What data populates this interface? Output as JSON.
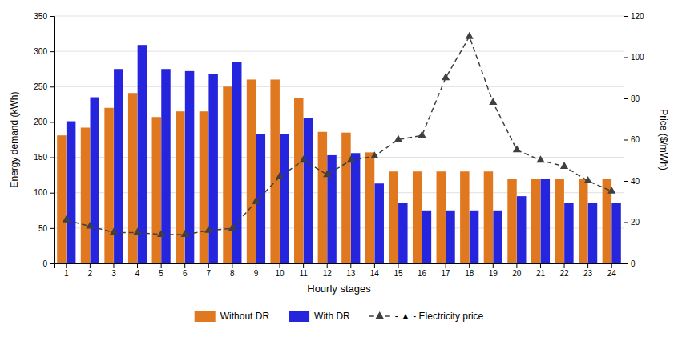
{
  "chart_data": {
    "type": "bar",
    "categories": [
      1,
      2,
      3,
      4,
      5,
      6,
      7,
      8,
      9,
      10,
      11,
      12,
      13,
      14,
      15,
      16,
      17,
      18,
      19,
      20,
      21,
      22,
      23,
      24
    ],
    "series": [
      {
        "name": "Without DR",
        "color": "#E07820",
        "type": "bar",
        "values": [
          181,
          192,
          220,
          241,
          207,
          215,
          215,
          250,
          260,
          260,
          234,
          186,
          185,
          157,
          130,
          130,
          130,
          130,
          130,
          120,
          120,
          120,
          120,
          120
        ]
      },
      {
        "name": "With DR",
        "color": "#2525DD",
        "type": "bar",
        "values": [
          201,
          235,
          275,
          309,
          275,
          272,
          268,
          285,
          183,
          183,
          205,
          153,
          156,
          113,
          85,
          75,
          75,
          75,
          75,
          95,
          120,
          85,
          85,
          85
        ]
      },
      {
        "name": "- ▲ - Electricity price",
        "color": "#404040",
        "type": "line",
        "axis": "y2",
        "marker": "triangle",
        "line_style": "dashed",
        "values": [
          21,
          18,
          15,
          15,
          14,
          14,
          16,
          17,
          30,
          42,
          50,
          43,
          50,
          52,
          60,
          62,
          90,
          110,
          78,
          55,
          50,
          47,
          40,
          35
        ]
      }
    ],
    "xlabel": "Hourly stages",
    "ylabel": "Energy demand (kWh)",
    "y2label": "Price ($/mWh)",
    "ylim": [
      0,
      350
    ],
    "yticks": [
      0,
      50,
      100,
      150,
      200,
      250,
      300,
      350
    ],
    "y2lim": [
      0,
      120
    ],
    "y2ticks": [
      0,
      20,
      40,
      60,
      80,
      100,
      120
    ],
    "grid": true,
    "legend": "bottom"
  }
}
